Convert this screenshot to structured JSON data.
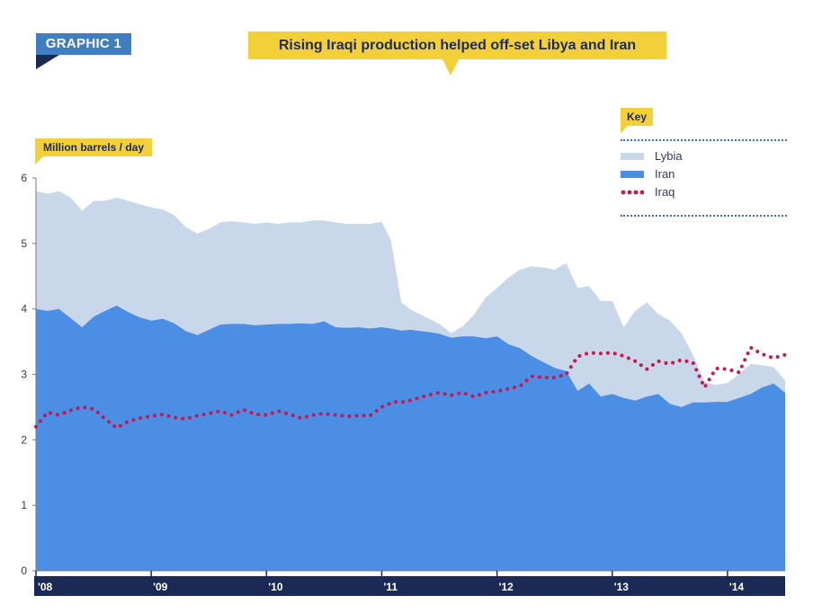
{
  "badge": {
    "label": "GRAPHIC 1"
  },
  "title": "Rising Iraqi production helped off-set Libya and Iran",
  "unit_label": "Million barrels / day",
  "key": {
    "label": "Key"
  },
  "colors": {
    "libya": "#c8d7ea",
    "iran": "#4a8ee6",
    "iraq": "#c8174a",
    "axis_bar": "#1b2a55",
    "highlight": "#f3cf3a"
  },
  "chart_data": {
    "type": "area",
    "title": "Rising Iraqi production helped off-set Libya and Iran",
    "ylabel": "Million barrels / day",
    "xlabel": "",
    "ylim": [
      0,
      6
    ],
    "yticks": [
      "0",
      "1",
      "2",
      "3",
      "4",
      "5",
      "6"
    ],
    "xlim": [
      2008.0,
      2014.5
    ],
    "xticks": [
      {
        "label": "'08",
        "x": 2008
      },
      {
        "label": "'09",
        "x": 2009
      },
      {
        "label": "'10",
        "x": 2010
      },
      {
        "label": "'11",
        "x": 2011
      },
      {
        "label": "'12",
        "x": 2012
      },
      {
        "label": "'13",
        "x": 2013
      },
      {
        "label": "'14",
        "x": 2014
      }
    ],
    "legend": {
      "position": "top-right",
      "entries": [
        "Lybia",
        "Iran",
        "Iraq"
      ]
    },
    "series": [
      {
        "name": "Lybia",
        "style": "stacked-area",
        "x": [
          2008.0,
          2008.1,
          2008.2,
          2008.3,
          2008.4,
          2008.5,
          2008.6,
          2008.7,
          2008.8,
          2008.9,
          2009.0,
          2009.1,
          2009.2,
          2009.3,
          2009.4,
          2009.5,
          2009.6,
          2009.7,
          2009.8,
          2009.9,
          2010.0,
          2010.1,
          2010.2,
          2010.3,
          2010.4,
          2010.5,
          2010.6,
          2010.7,
          2010.8,
          2010.9,
          2011.0,
          2011.08,
          2011.17,
          2011.25,
          2011.4,
          2011.5,
          2011.6,
          2011.7,
          2011.8,
          2011.9,
          2012.0,
          2012.1,
          2012.2,
          2012.3,
          2012.4,
          2012.5,
          2012.6,
          2012.7,
          2012.8,
          2012.9,
          2013.0,
          2013.1,
          2013.2,
          2013.3,
          2013.4,
          2013.5,
          2013.6,
          2013.7,
          2013.8,
          2013.9,
          2014.0,
          2014.1,
          2014.2,
          2014.3,
          2014.4,
          2014.5
        ],
        "top": [
          5.8,
          5.76,
          5.8,
          5.7,
          5.5,
          5.65,
          5.65,
          5.7,
          5.65,
          5.6,
          5.55,
          5.52,
          5.43,
          5.25,
          5.15,
          5.22,
          5.32,
          5.34,
          5.32,
          5.3,
          5.32,
          5.3,
          5.32,
          5.32,
          5.35,
          5.35,
          5.32,
          5.3,
          5.3,
          5.3,
          5.33,
          5.05,
          4.1,
          3.99,
          3.86,
          3.77,
          3.63,
          3.73,
          3.91,
          4.17,
          4.32,
          4.48,
          4.6,
          4.65,
          4.63,
          4.6,
          4.7,
          4.32,
          4.35,
          4.12,
          4.12,
          3.72,
          3.97,
          4.1,
          3.92,
          3.82,
          3.63,
          3.3,
          2.88,
          2.84,
          2.87,
          3.0,
          3.16,
          3.14,
          3.11,
          2.91
        ]
      },
      {
        "name": "Iran",
        "style": "area",
        "x": [
          2008.0,
          2008.1,
          2008.2,
          2008.3,
          2008.4,
          2008.5,
          2008.6,
          2008.7,
          2008.8,
          2008.9,
          2009.0,
          2009.1,
          2009.2,
          2009.3,
          2009.4,
          2009.5,
          2009.6,
          2009.7,
          2009.8,
          2009.9,
          2010.0,
          2010.1,
          2010.2,
          2010.3,
          2010.4,
          2010.5,
          2010.6,
          2010.7,
          2010.8,
          2010.9,
          2011.0,
          2011.08,
          2011.17,
          2011.25,
          2011.4,
          2011.5,
          2011.6,
          2011.7,
          2011.8,
          2011.9,
          2012.0,
          2012.1,
          2012.2,
          2012.3,
          2012.4,
          2012.5,
          2012.6,
          2012.7,
          2012.8,
          2012.9,
          2013.0,
          2013.1,
          2013.2,
          2013.3,
          2013.4,
          2013.5,
          2013.6,
          2013.7,
          2013.8,
          2013.9,
          2014.0,
          2014.1,
          2014.2,
          2014.3,
          2014.4,
          2014.5
        ],
        "values": [
          4.0,
          3.97,
          4.0,
          3.86,
          3.72,
          3.88,
          3.97,
          4.05,
          3.95,
          3.87,
          3.82,
          3.85,
          3.78,
          3.66,
          3.6,
          3.68,
          3.76,
          3.77,
          3.77,
          3.75,
          3.76,
          3.77,
          3.77,
          3.78,
          3.77,
          3.81,
          3.72,
          3.71,
          3.72,
          3.7,
          3.72,
          3.7,
          3.67,
          3.68,
          3.65,
          3.62,
          3.56,
          3.58,
          3.58,
          3.55,
          3.58,
          3.46,
          3.4,
          3.28,
          3.19,
          3.1,
          3.05,
          2.75,
          2.86,
          2.66,
          2.7,
          2.64,
          2.6,
          2.66,
          2.7,
          2.55,
          2.5,
          2.57,
          2.57,
          2.58,
          2.58,
          2.64,
          2.7,
          2.8,
          2.86,
          2.72
        ]
      },
      {
        "name": "Iraq",
        "style": "dotted-line",
        "x": [
          2008.0,
          2008.1,
          2008.2,
          2008.3,
          2008.4,
          2008.5,
          2008.6,
          2008.7,
          2008.8,
          2008.9,
          2009.0,
          2009.1,
          2009.2,
          2009.3,
          2009.4,
          2009.5,
          2009.6,
          2009.7,
          2009.8,
          2009.9,
          2010.0,
          2010.1,
          2010.2,
          2010.3,
          2010.4,
          2010.5,
          2010.6,
          2010.7,
          2010.8,
          2010.9,
          2011.0,
          2011.1,
          2011.2,
          2011.3,
          2011.4,
          2011.5,
          2011.6,
          2011.7,
          2011.8,
          2011.9,
          2012.0,
          2012.1,
          2012.2,
          2012.3,
          2012.4,
          2012.5,
          2012.6,
          2012.7,
          2012.8,
          2012.9,
          2013.0,
          2013.1,
          2013.2,
          2013.3,
          2013.4,
          2013.5,
          2013.6,
          2013.7,
          2013.8,
          2013.9,
          2014.0,
          2014.1,
          2014.2,
          2014.3,
          2014.4,
          2014.5
        ],
        "values": [
          2.2,
          2.42,
          2.38,
          2.45,
          2.5,
          2.47,
          2.32,
          2.18,
          2.28,
          2.33,
          2.36,
          2.39,
          2.34,
          2.32,
          2.37,
          2.4,
          2.44,
          2.38,
          2.46,
          2.39,
          2.38,
          2.44,
          2.39,
          2.33,
          2.38,
          2.4,
          2.38,
          2.36,
          2.37,
          2.37,
          2.5,
          2.58,
          2.58,
          2.63,
          2.68,
          2.72,
          2.68,
          2.72,
          2.66,
          2.72,
          2.74,
          2.78,
          2.82,
          2.97,
          2.95,
          2.95,
          3.0,
          3.27,
          3.33,
          3.32,
          3.33,
          3.28,
          3.2,
          3.08,
          3.2,
          3.16,
          3.22,
          3.18,
          2.8,
          3.09,
          3.08,
          3.03,
          3.41,
          3.31,
          3.25,
          3.3
        ]
      }
    ]
  }
}
